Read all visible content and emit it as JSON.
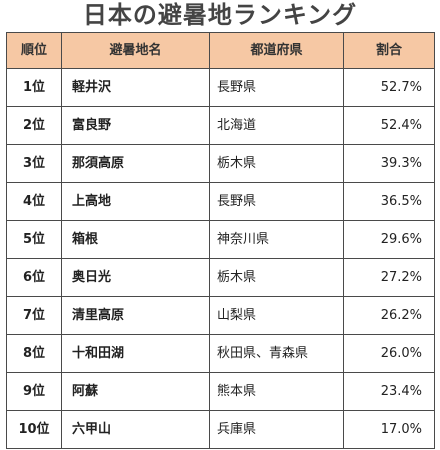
{
  "title": "日本の避暑地ランキング",
  "table": {
    "headers": [
      "順位",
      "避暑地名",
      "都道府県",
      "割合"
    ],
    "rows": [
      [
        "1位",
        "軽井沢",
        "長野県",
        "52.7%"
      ],
      [
        "2位",
        "富良野",
        "北海道",
        "52.4%"
      ],
      [
        "3位",
        "那須高原",
        "栃木県",
        "39.3%"
      ],
      [
        "4位",
        "上高地",
        "長野県",
        "36.5%"
      ],
      [
        "5位",
        "箱根",
        "神奈川県",
        "29.6%"
      ],
      [
        "6位",
        "奥日光",
        "栃木県",
        "27.2%"
      ],
      [
        "7位",
        "清里高原",
        "山梨県",
        "26.2%"
      ],
      [
        "8位",
        "十和田湖",
        "秋田県、青森県",
        "26.0%"
      ],
      [
        "9位",
        "阿蘇",
        "熊本県",
        "23.4%"
      ],
      [
        "10位",
        "六甲山",
        "兵庫県",
        "17.0%"
      ]
    ]
  },
  "colors": {
    "header_background": "#f6c8a4",
    "border": "#4a4a4a",
    "title_text": "#444444"
  }
}
